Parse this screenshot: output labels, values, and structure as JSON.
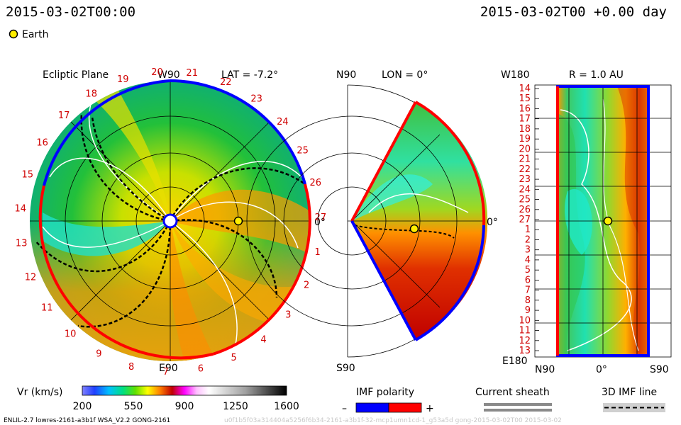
{
  "header": {
    "time_left": "2015-03-02T00:00",
    "time_right": "2015-03-02T00 +0.00 day",
    "earth_legend": "Earth"
  },
  "panels": {
    "ecliptic": {
      "title": "Ecliptic Plane",
      "lat_label": "LAT = -7.2°",
      "top_label": "W90",
      "bottom_label": "E90",
      "right_label": "0°",
      "carrington_ticks": [
        "20",
        "21",
        "22",
        "23",
        "24",
        "25",
        "26",
        "27",
        "1",
        "2",
        "3",
        "4",
        "5",
        "6",
        "7",
        "8",
        "9",
        "10",
        "11",
        "12",
        "13",
        "14",
        "15",
        "16",
        "17",
        "18",
        "19"
      ]
    },
    "meridional": {
      "top_label": "N90",
      "bottom_label": "S90",
      "lon_label": "LON = 0°",
      "right_label": "0°"
    },
    "sphere": {
      "r_label": "R = 1.0 AU",
      "top_left": "W180",
      "bottom_left": "E180",
      "bottom_labels": [
        "N90",
        "0°",
        "S90"
      ],
      "row_ticks": [
        "14",
        "15",
        "16",
        "17",
        "18",
        "19",
        "20",
        "21",
        "22",
        "23",
        "24",
        "25",
        "26",
        "27",
        "1",
        "2",
        "3",
        "4",
        "5",
        "6",
        "7",
        "8",
        "9",
        "10",
        "11",
        "12",
        "13"
      ]
    }
  },
  "colorbar": {
    "title": "Vr (km/s)",
    "ticks": [
      "200",
      "550",
      "900",
      "1250",
      "1600"
    ],
    "min": 200,
    "max": 1600
  },
  "legend": {
    "imf_title": "IMF polarity",
    "minus": "–",
    "plus": "+",
    "sheath_title": "Current sheath",
    "imf3d_title": "3D IMF line",
    "negative_color": "#0000ff",
    "positive_color": "#ff0000"
  },
  "footer": {
    "model_info": "ENLIL-2.7 lowres-2161-a3b1f WSA_V2.2 GONG-2161",
    "run_id": "u0f1b5f03a314404a5256f6b34-2161-a3b1f-32-mcp1umn1cd-1_g53a5d gong-2015-03-02T00 2015-03-02"
  },
  "chart_data": {
    "type": "heatmap",
    "variable": "Vr (km/s)",
    "value_range": [
      200,
      1600
    ],
    "earth_position": {
      "r_au": 1.0,
      "lon_deg": 0,
      "lat_deg": -7.2
    },
    "time": "2015-03-02T00:00",
    "offset_days": 0.0
  }
}
